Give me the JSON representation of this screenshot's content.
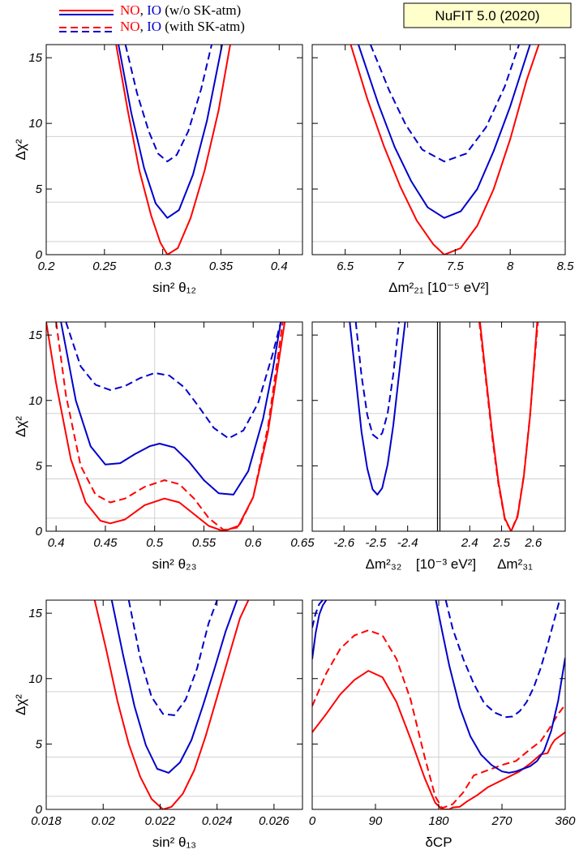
{
  "header": {
    "legend": [
      {
        "no": "NO",
        "sep": ", ",
        "io": "IO",
        "rest": " (w/o SK-atm)",
        "style": "solid"
      },
      {
        "no": "NO",
        "sep": ", ",
        "io": "IO",
        "rest": " (with SK-atm)",
        "style": "dashed"
      }
    ],
    "badge": "NuFIT 5.0 (2020)"
  },
  "colors": {
    "NO": "#ff0000",
    "IO": "#0000cc",
    "grid": "#d0d0d0",
    "badge_fill": "#ffffcc"
  },
  "chart_data": [
    {
      "type": "line",
      "ylabel": "Δχ²",
      "xlabel": "sin² θ₁₂",
      "xlim": [
        0.2,
        0.42
      ],
      "ylim": [
        0,
        16
      ],
      "xticks": [
        0.2,
        0.25,
        0.3,
        0.35,
        0.4
      ],
      "yticks": [
        0,
        5,
        10,
        15
      ],
      "hlines": [
        1,
        4,
        9
      ],
      "series": [
        {
          "key": "io_dash",
          "x": [
            0.268,
            0.278,
            0.288,
            0.296,
            0.304,
            0.312,
            0.322,
            0.333,
            0.342
          ],
          "y": [
            16,
            12.3,
            9.4,
            7.7,
            7.1,
            7.6,
            9.4,
            12.6,
            16
          ]
        },
        {
          "key": "io_solid",
          "x": [
            0.262,
            0.273,
            0.284,
            0.294,
            0.304,
            0.314,
            0.326,
            0.338,
            0.351
          ],
          "y": [
            16,
            10.8,
            6.6,
            3.9,
            2.8,
            3.4,
            6.1,
            10.2,
            16
          ]
        },
        {
          "key": "no_solid",
          "x": [
            0.26,
            0.27,
            0.28,
            0.29,
            0.298,
            0.304,
            0.313,
            0.324,
            0.336,
            0.348,
            0.358
          ],
          "y": [
            16,
            11.0,
            6.4,
            3.0,
            0.9,
            0.0,
            0.5,
            2.8,
            6.4,
            11.0,
            16
          ]
        }
      ]
    },
    {
      "type": "line",
      "xlabel": "Δm²₂₁ [10⁻⁵ eV²]",
      "xlim": [
        6.2,
        8.5
      ],
      "ylim": [
        0,
        16
      ],
      "xticks": [
        6.5,
        7,
        7.5,
        8,
        8.5
      ],
      "yticks": [
        0,
        5,
        10,
        15
      ],
      "hlines": [
        1,
        4,
        9
      ],
      "series": [
        {
          "key": "io_dash",
          "x": [
            6.73,
            6.9,
            7.05,
            7.2,
            7.4,
            7.6,
            7.78,
            7.95,
            8.08
          ],
          "y": [
            16,
            12.5,
            9.9,
            8.0,
            7.1,
            7.7,
            9.7,
            12.8,
            16
          ]
        },
        {
          "key": "io_solid",
          "x": [
            6.62,
            6.8,
            6.95,
            7.1,
            7.25,
            7.4,
            7.55,
            7.7,
            7.85,
            8.0,
            8.18
          ],
          "y": [
            16,
            11.5,
            8.2,
            5.6,
            3.6,
            2.8,
            3.3,
            5.0,
            7.9,
            11.3,
            16
          ]
        },
        {
          "key": "no_solid",
          "x": [
            6.55,
            6.7,
            6.85,
            7.0,
            7.15,
            7.3,
            7.4,
            7.55,
            7.7,
            7.85,
            8.0,
            8.15,
            8.26
          ],
          "y": [
            16,
            11.9,
            8.3,
            5.2,
            2.6,
            0.8,
            0.0,
            0.5,
            2.2,
            5.0,
            8.8,
            13.3,
            16
          ]
        }
      ]
    },
    {
      "type": "line",
      "ylabel": "Δχ²",
      "xlabel": "sin² θ₂₃",
      "xlim": [
        0.39,
        0.65
      ],
      "ylim": [
        0,
        16
      ],
      "xticks": [
        0.4,
        0.45,
        0.5,
        0.55,
        0.6,
        0.65
      ],
      "yticks": [
        0,
        5,
        10,
        15
      ],
      "hlines": [
        1,
        4,
        9
      ],
      "vlines": [
        0.5
      ],
      "series": [
        {
          "key": "io_dash",
          "x": [
            0.41,
            0.425,
            0.44,
            0.455,
            0.47,
            0.485,
            0.5,
            0.515,
            0.53,
            0.545,
            0.56,
            0.575,
            0.59,
            0.605,
            0.62,
            0.628
          ],
          "y": [
            16,
            12.6,
            11.2,
            10.8,
            11.1,
            11.7,
            12.1,
            11.9,
            11.0,
            9.5,
            7.9,
            7.1,
            7.7,
            9.8,
            13.6,
            16
          ]
        },
        {
          "key": "io_solid",
          "x": [
            0.405,
            0.42,
            0.435,
            0.45,
            0.465,
            0.48,
            0.495,
            0.505,
            0.52,
            0.535,
            0.55,
            0.565,
            0.58,
            0.595,
            0.61,
            0.62,
            0.628
          ],
          "y": [
            16,
            10.0,
            6.5,
            5.1,
            5.2,
            5.9,
            6.5,
            6.7,
            6.4,
            5.3,
            3.9,
            2.9,
            2.8,
            4.6,
            8.6,
            12.4,
            16
          ]
        },
        {
          "key": "no_dash",
          "x": [
            0.4,
            0.41,
            0.425,
            0.44,
            0.455,
            0.47,
            0.49,
            0.51,
            0.525,
            0.54,
            0.555,
            0.57,
            0.585,
            0.6,
            0.615,
            0.63
          ],
          "y": [
            16,
            10.4,
            5.0,
            2.8,
            2.2,
            2.5,
            3.4,
            3.9,
            3.6,
            2.5,
            1.0,
            0.1,
            0.3,
            2.6,
            8.0,
            16
          ]
        },
        {
          "key": "no_solid",
          "x": [
            0.39,
            0.4,
            0.415,
            0.43,
            0.445,
            0.455,
            0.47,
            0.49,
            0.51,
            0.525,
            0.54,
            0.555,
            0.57,
            0.585,
            0.6,
            0.615,
            0.632
          ],
          "y": [
            16,
            11.3,
            5.5,
            2.2,
            0.8,
            0.6,
            0.9,
            2.0,
            2.5,
            2.2,
            1.3,
            0.4,
            0.0,
            0.4,
            2.6,
            7.6,
            16
          ]
        }
      ]
    },
    {
      "type": "line",
      "xlabel_parts": [
        "Δm²₃₂",
        "[10⁻³ eV²]",
        "Δm²₃₁"
      ],
      "xlim": [
        -2.7,
        2.7
      ],
      "ylim": [
        0,
        16
      ],
      "xticks": [
        -2.6,
        -2.5,
        -2.4,
        2.4,
        2.5,
        2.6
      ],
      "xtick_labels": [
        "-2.6",
        "-2.5",
        "-2.4",
        "2.4",
        "2.5",
        "2.6"
      ],
      "yticks": [
        0,
        5,
        10,
        15
      ],
      "hlines": [
        1,
        4,
        9
      ],
      "series": [
        {
          "key": "io_dash",
          "side": "left",
          "x": [
            -2.563,
            -2.545,
            -2.527,
            -2.51,
            -2.495,
            -2.48,
            -2.463,
            -2.445,
            -2.427
          ],
          "y": [
            16,
            11.9,
            8.9,
            7.4,
            7.1,
            7.5,
            9.0,
            12.0,
            16
          ]
        },
        {
          "key": "io_solid",
          "side": "left",
          "x": [
            -2.582,
            -2.562,
            -2.545,
            -2.527,
            -2.51,
            -2.495,
            -2.48,
            -2.463,
            -2.445,
            -2.427,
            -2.408
          ],
          "y": [
            16,
            11.5,
            7.6,
            4.8,
            3.2,
            2.8,
            3.3,
            5.1,
            8.1,
            12.0,
            16
          ]
        },
        {
          "key": "no_dash",
          "side": "right",
          "x": [
            2.43,
            2.45,
            2.47,
            2.49,
            2.51,
            2.53,
            2.55,
            2.57,
            2.59,
            2.614
          ],
          "y": [
            16,
            11.7,
            7.3,
            3.6,
            0.9,
            0.0,
            1.2,
            4.3,
            9.0,
            16
          ]
        },
        {
          "key": "no_solid",
          "side": "right",
          "x": [
            2.432,
            2.45,
            2.47,
            2.49,
            2.51,
            2.53,
            2.55,
            2.57,
            2.59,
            2.612
          ],
          "y": [
            16,
            12.0,
            7.6,
            3.8,
            1.0,
            0.0,
            1.1,
            4.2,
            8.9,
            16
          ]
        }
      ]
    },
    {
      "type": "line",
      "ylabel": "Δχ²",
      "xlabel": "sin² θ₁₃",
      "xlim": [
        0.018,
        0.027
      ],
      "ylim": [
        0,
        16
      ],
      "xticks": [
        0.018,
        0.02,
        0.022,
        0.024,
        0.026
      ],
      "yticks": [
        0,
        5,
        10,
        15
      ],
      "hlines": [
        1,
        4,
        9
      ],
      "series": [
        {
          "key": "io_dash",
          "x": [
            0.0209,
            0.0213,
            0.0217,
            0.0221,
            0.0225,
            0.0229,
            0.0233,
            0.0237,
            0.024
          ],
          "y": [
            16,
            11.6,
            8.6,
            7.3,
            7.2,
            8.4,
            10.8,
            14.2,
            16
          ]
        },
        {
          "key": "io_solid",
          "x": [
            0.0203,
            0.0207,
            0.0211,
            0.0215,
            0.0219,
            0.0223,
            0.0227,
            0.0231,
            0.0235,
            0.0239,
            0.0243,
            0.0247
          ],
          "y": [
            16,
            11.8,
            7.9,
            4.9,
            3.1,
            2.8,
            3.6,
            5.3,
            7.9,
            10.7,
            13.6,
            16
          ]
        },
        {
          "key": "no_solid",
          "x": [
            0.0197,
            0.0201,
            0.0205,
            0.0209,
            0.0213,
            0.0217,
            0.0221,
            0.0224,
            0.0228,
            0.0232,
            0.0236,
            0.024,
            0.0244,
            0.0248,
            0.0251
          ],
          "y": [
            16,
            12.3,
            8.3,
            5.0,
            2.5,
            0.8,
            0.0,
            0.2,
            1.2,
            3.0,
            5.6,
            8.6,
            11.6,
            14.6,
            16
          ]
        }
      ]
    },
    {
      "type": "line",
      "xlabel": "δCP",
      "xlim": [
        0,
        360
      ],
      "ylim": [
        0,
        16
      ],
      "xticks": [
        0,
        90,
        180,
        270,
        360
      ],
      "yticks": [
        0,
        5,
        10,
        15
      ],
      "hlines": [
        1,
        4,
        9
      ],
      "vlines": [
        180
      ],
      "series": [
        {
          "key": "io_solid_left",
          "x": [
            0,
            5,
            10,
            15,
            20
          ],
          "y": [
            11.5,
            13.5,
            14.9,
            15.6,
            16
          ]
        },
        {
          "key": "io_dash_left",
          "x": [
            0,
            5,
            10,
            15
          ],
          "y": [
            13.9,
            15.0,
            15.7,
            16
          ]
        },
        {
          "key": "no_dash",
          "x": [
            0,
            20,
            40,
            60,
            80,
            100,
            120,
            140,
            160,
            175,
            185,
            200,
            215,
            230,
            250,
            270,
            290,
            310,
            325,
            340,
            350,
            360
          ],
          "y": [
            7.9,
            10.4,
            12.3,
            13.3,
            13.7,
            13.3,
            11.5,
            8.4,
            4.0,
            1.0,
            0.1,
            0.4,
            1.3,
            2.6,
            3.0,
            3.4,
            3.7,
            4.6,
            5.2,
            6.4,
            7.3,
            8.0
          ]
        },
        {
          "key": "no_solid",
          "x": [
            0,
            20,
            40,
            60,
            80,
            100,
            120,
            140,
            160,
            175,
            185,
            195,
            200,
            210,
            220,
            235,
            250,
            265,
            280,
            295,
            310,
            325,
            335,
            340,
            345,
            350,
            360
          ],
          "y": [
            5.9,
            7.3,
            8.8,
            9.9,
            10.6,
            10.1,
            8.2,
            5.4,
            2.4,
            0.5,
            0.0,
            0.0,
            0.15,
            0.2,
            0.6,
            1.1,
            1.7,
            2.1,
            2.5,
            2.9,
            3.5,
            4.2,
            4.3,
            4.9,
            5.3,
            5.5,
            5.9
          ]
        },
        {
          "key": "io_solid",
          "x": [
            176,
            185,
            195,
            210,
            225,
            240,
            255,
            270,
            280,
            290,
            300,
            310,
            320,
            330,
            340,
            350,
            360
          ],
          "y": [
            16,
            13.6,
            11.0,
            7.8,
            5.6,
            4.2,
            3.4,
            2.9,
            2.8,
            2.9,
            3.1,
            3.3,
            3.7,
            4.5,
            6.0,
            8.3,
            11.6
          ]
        },
        {
          "key": "io_dash",
          "x": [
            190,
            200,
            215,
            230,
            245,
            260,
            275,
            285,
            295,
            305,
            315,
            325,
            335,
            345,
            352
          ],
          "y": [
            16,
            13.8,
            11.5,
            9.6,
            8.1,
            7.4,
            7.05,
            7.1,
            7.5,
            8.2,
            9.3,
            10.8,
            12.6,
            14.6,
            16
          ]
        }
      ]
    }
  ]
}
